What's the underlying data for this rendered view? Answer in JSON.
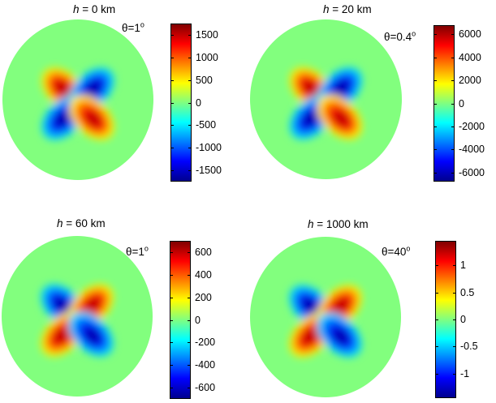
{
  "chart_data": [
    {
      "type": "heatmap",
      "title_prefix": "h",
      "title_value": " = 0 km",
      "annotation_prefix": "θ=1",
      "annotation_sup": "o",
      "colorbar_ticks": [
        "1500",
        "1000",
        "500",
        "0",
        "-500",
        "-1000",
        "-1500"
      ],
      "colorbar_tick_values": [
        1500,
        1000,
        500,
        0,
        -500,
        -1000,
        -1500
      ],
      "clim": [
        -1750,
        1750
      ],
      "pattern": "quadrupole",
      "lobe_signs": {
        "upper_left": "positive",
        "upper_right": "negative",
        "lower_left": "negative",
        "lower_right": "positive"
      },
      "colormap": "jet"
    },
    {
      "type": "heatmap",
      "title_prefix": "h",
      "title_value": " = 20 km",
      "annotation_prefix": "θ=0.4",
      "annotation_sup": "o",
      "colorbar_ticks": [
        "6000",
        "4000",
        "2000",
        "0",
        "-2000",
        "-4000",
        "-6000"
      ],
      "colorbar_tick_values": [
        6000,
        4000,
        2000,
        0,
        -2000,
        -4000,
        -6000
      ],
      "clim": [
        -6800,
        6800
      ],
      "pattern": "quadrupole",
      "lobe_signs": {
        "upper_left": "positive",
        "upper_right": "negative",
        "lower_left": "negative",
        "lower_right": "positive"
      },
      "colormap": "jet"
    },
    {
      "type": "heatmap",
      "title_prefix": "h",
      "title_value": " = 60 km",
      "annotation_prefix": "θ=1",
      "annotation_sup": "o",
      "colorbar_ticks": [
        "600",
        "400",
        "200",
        "0",
        "-200",
        "-400",
        "-600"
      ],
      "colorbar_tick_values": [
        600,
        400,
        200,
        0,
        -200,
        -400,
        -600
      ],
      "clim": [
        -700,
        700
      ],
      "pattern": "quadrupole",
      "lobe_signs": {
        "upper_left": "negative",
        "upper_right": "positive",
        "lower_left": "positive",
        "lower_right": "negative"
      },
      "colormap": "jet"
    },
    {
      "type": "heatmap",
      "title_prefix": "h",
      "title_value": " = 1000 km",
      "annotation_prefix": "θ=40",
      "annotation_sup": "o",
      "colorbar_ticks": [
        "1",
        "0.5",
        "0",
        "-0.5",
        "-1"
      ],
      "colorbar_tick_values": [
        1,
        0.5,
        0,
        -0.5,
        -1
      ],
      "clim": [
        -1.45,
        1.45
      ],
      "pattern": "quadrupole",
      "lobe_signs": {
        "upper_left": "negative",
        "upper_right": "positive",
        "lower_left": "positive",
        "lower_right": "negative"
      },
      "colormap": "jet"
    }
  ]
}
